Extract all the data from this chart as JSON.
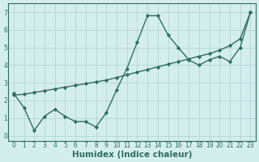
{
  "line1_x": [
    0,
    1,
    2,
    3,
    4,
    5,
    6,
    7,
    8,
    9,
    10,
    11,
    12,
    13,
    14,
    15,
    16,
    17,
    18,
    19,
    20,
    21,
    22,
    23
  ],
  "line1_y": [
    2.4,
    1.6,
    0.3,
    1.1,
    1.5,
    1.1,
    0.8,
    0.8,
    0.5,
    1.3,
    2.6,
    3.8,
    5.3,
    6.8,
    6.8,
    5.7,
    5.0,
    4.3,
    4.0,
    4.3,
    4.5,
    4.2,
    5.0,
    7.0
  ],
  "line2_x": [
    0,
    1,
    2,
    3,
    4,
    5,
    6,
    7,
    8,
    9,
    10,
    11,
    12,
    13,
    14,
    15,
    16,
    17,
    18,
    19,
    20,
    21,
    22,
    23
  ],
  "line2_y": [
    2.3,
    2.35,
    2.45,
    2.55,
    2.65,
    2.75,
    2.85,
    2.95,
    3.05,
    3.15,
    3.3,
    3.45,
    3.6,
    3.75,
    3.9,
    4.05,
    4.2,
    4.35,
    4.5,
    4.65,
    4.85,
    5.1,
    5.5,
    7.0
  ],
  "line_color": "#2e6e60",
  "bg_color": "#d4eeee",
  "grid_color": "#b8d8d8",
  "xlabel": "Humidex (Indice chaleur)",
  "ylim": [
    -0.3,
    7.5
  ],
  "xlim": [
    -0.5,
    23.5
  ],
  "yticks": [
    0,
    1,
    2,
    3,
    4,
    5,
    6,
    7
  ],
  "xticks": [
    0,
    1,
    2,
    3,
    4,
    5,
    6,
    7,
    8,
    9,
    10,
    11,
    12,
    13,
    14,
    15,
    16,
    17,
    18,
    19,
    20,
    21,
    22,
    23
  ],
  "marker": "D",
  "markersize": 2.2,
  "linewidth": 1.0,
  "xlabel_fontsize": 7.5,
  "tick_fontsize": 5.5
}
